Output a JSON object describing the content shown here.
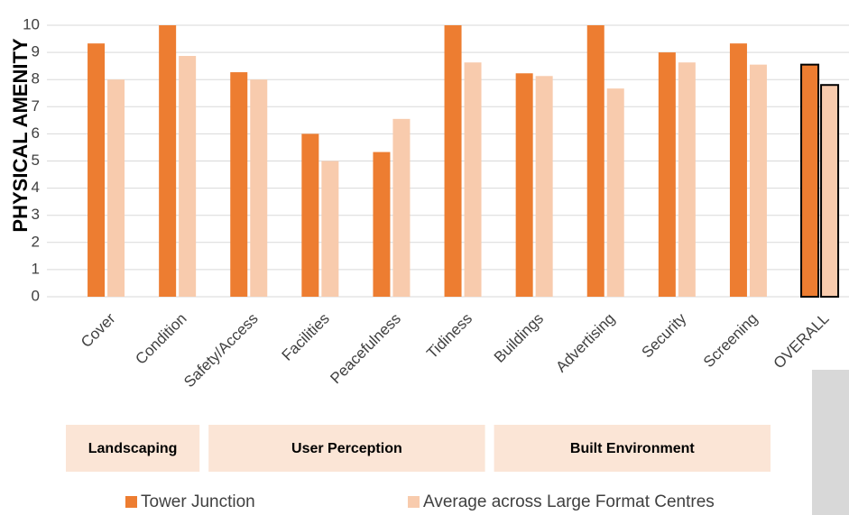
{
  "chart_data": {
    "type": "bar",
    "y_label": "PHYSICAL AMENITY",
    "categories": [
      "Cover",
      "Condition",
      "Safety/Access",
      "Facilities",
      "Peacefulness",
      "Tidiness",
      "Buildings",
      "Advertising",
      "Security",
      "Screening",
      "OVERALL"
    ],
    "series": [
      {
        "name": "Tower Junction",
        "color": "#ed7d31",
        "values": [
          9.33,
          10,
          8.27,
          6.0,
          5.33,
          10,
          8.23,
          10,
          9.0,
          9.33,
          8.55
        ]
      },
      {
        "name": "Average across Large Format Centres",
        "color": "#f8cbad",
        "values": [
          8.0,
          8.87,
          8.0,
          5.0,
          6.55,
          8.63,
          8.13,
          7.67,
          8.63,
          8.55,
          7.8
        ]
      }
    ],
    "ylim": [
      0,
      10
    ],
    "yticks": [
      0,
      1,
      2,
      3,
      4,
      5,
      6,
      7,
      8,
      9,
      10
    ],
    "grid": true,
    "outline": {
      "category_index": 10,
      "color": "#000000"
    },
    "groups": [
      {
        "label": "Landscaping",
        "start": 0,
        "end": 1
      },
      {
        "label": "User Perception",
        "start": 2,
        "end": 5
      },
      {
        "label": "Built Environment",
        "start": 6,
        "end": 9
      }
    ],
    "group_color": "#fbe5d6",
    "legend": "bottom"
  }
}
